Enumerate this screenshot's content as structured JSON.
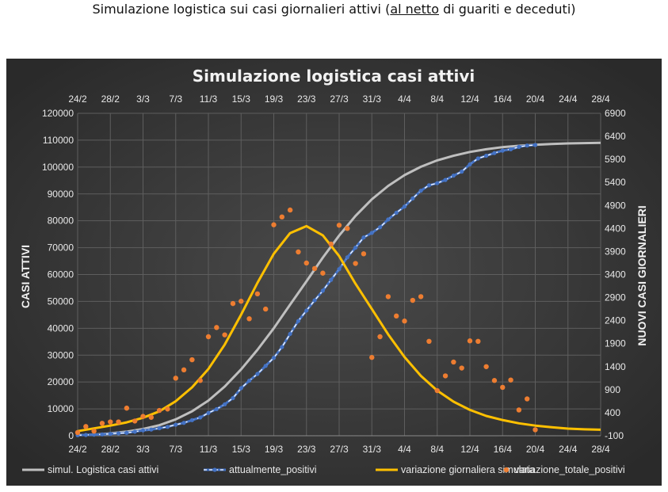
{
  "page": {
    "title_pre": "Simulazione logistica sui casi giornalieri attivi (",
    "title_underlined": "al netto",
    "title_post": " di guariti e deceduti)"
  },
  "chart_data": {
    "type": "line",
    "title": "Simulazione logistica casi attivi",
    "ylabel": "CASI ATTIVI",
    "y2label": "NUOVI CASI GIORNALIERI",
    "x_tick_labels": [
      "24/2",
      "28/2",
      "3/3",
      "7/3",
      "11/3",
      "15/3",
      "19/3",
      "23/3",
      "27/3",
      "31/3",
      "4/4",
      "8/4",
      "12/4",
      "16/4",
      "20/4",
      "24/4",
      "28/4"
    ],
    "x_tick_days": [
      0,
      4,
      8,
      12,
      16,
      20,
      24,
      28,
      32,
      36,
      40,
      44,
      48,
      52,
      56,
      60,
      64
    ],
    "x_unit": "days from 24/2",
    "xlim": [
      0,
      64
    ],
    "ylim": [
      0,
      120000
    ],
    "y_ticks": [
      0,
      10000,
      20000,
      30000,
      40000,
      50000,
      60000,
      70000,
      80000,
      90000,
      100000,
      110000,
      120000
    ],
    "y2lim": [
      -100,
      6900
    ],
    "y2_ticks": [
      -100,
      400,
      900,
      1400,
      1900,
      2400,
      2900,
      3400,
      3900,
      4400,
      4900,
      5400,
      5900,
      6400,
      6900
    ],
    "background": "#404040",
    "grid": true,
    "legend_position": "bottom",
    "series": [
      {
        "name": "simul. Logistica casi attivi",
        "axis": "left",
        "kind": "line",
        "color": "#bfbfbf",
        "x": [
          0,
          2,
          4,
          6,
          8,
          10,
          12,
          14,
          16,
          18,
          20,
          22,
          24,
          26,
          28,
          30,
          32,
          34,
          36,
          38,
          40,
          42,
          44,
          46,
          48,
          50,
          52,
          54,
          56,
          58,
          60,
          62,
          64
        ],
        "y": [
          200,
          420,
          870,
          1530,
          2500,
          3920,
          6100,
          9100,
          13100,
          18300,
          24700,
          32000,
          40000,
          48800,
          57500,
          66300,
          74500,
          81800,
          88000,
          93000,
          97000,
          100100,
          102500,
          104200,
          105600,
          106600,
          107400,
          107900,
          108300,
          108600,
          108800,
          108900,
          109000
        ]
      },
      {
        "name": "attualmente_positivi",
        "axis": "left",
        "kind": "line-markers",
        "color": "#4472c4",
        "dash": "#ffffff",
        "x": [
          0,
          1,
          2,
          3,
          4,
          5,
          6,
          7,
          8,
          9,
          10,
          11,
          12,
          13,
          14,
          15,
          16,
          17,
          18,
          19,
          20,
          21,
          22,
          23,
          24,
          25,
          26,
          27,
          28,
          29,
          30,
          31,
          32,
          33,
          34,
          35,
          36,
          37,
          38,
          39,
          40,
          41,
          42,
          43,
          44,
          45,
          46,
          47,
          48,
          49,
          50,
          51,
          52,
          53,
          54,
          55,
          56
        ],
        "y": [
          200,
          300,
          400,
          500,
          700,
          900,
          1100,
          1500,
          2000,
          2300,
          2800,
          3300,
          4100,
          4800,
          5800,
          6800,
          8500,
          9900,
          11700,
          14000,
          17700,
          20500,
          23000,
          26000,
          29000,
          33000,
          37900,
          42700,
          46600,
          50400,
          54000,
          58000,
          62000,
          66400,
          70000,
          73800,
          75500,
          77600,
          80500,
          83000,
          85300,
          88300,
          91200,
          93200,
          94000,
          95200,
          96800,
          98300,
          101000,
          103200,
          104200,
          105200,
          106100,
          106600,
          107500,
          108000,
          108200
        ]
      },
      {
        "name": "variazione giornaliera simulata",
        "axis": "right",
        "kind": "line",
        "color": "#ffc000",
        "x": [
          0,
          2,
          4,
          6,
          8,
          10,
          12,
          14,
          16,
          18,
          20,
          22,
          24,
          26,
          28,
          30,
          32,
          34,
          36,
          38,
          40,
          42,
          44,
          46,
          48,
          50,
          52,
          54,
          56,
          58,
          60,
          62,
          64
        ],
        "y": [
          0,
          60,
          120,
          190,
          290,
          430,
          650,
          950,
          1350,
          1880,
          2530,
          3220,
          3850,
          4300,
          4450,
          4250,
          3800,
          3200,
          2650,
          2100,
          1610,
          1200,
          880,
          640,
          460,
          330,
          240,
          170,
          120,
          85,
          55,
          40,
          30
        ]
      },
      {
        "name": "variazione_totale_positivi",
        "axis": "right",
        "kind": "markers",
        "color": "#ed7d31",
        "x": [
          0,
          1,
          2,
          3,
          4,
          5,
          6,
          7,
          8,
          9,
          10,
          11,
          12,
          13,
          14,
          15,
          16,
          17,
          18,
          19,
          20,
          21,
          22,
          23,
          24,
          25,
          26,
          27,
          28,
          29,
          30,
          31,
          32,
          33,
          34,
          35,
          36,
          37,
          38,
          39,
          40,
          41,
          42,
          43,
          44,
          45,
          46,
          47,
          48,
          49,
          50,
          51,
          52,
          53,
          54,
          55,
          56
        ],
        "y": [
          -30,
          100,
          0,
          170,
          200,
          200,
          500,
          220,
          320,
          300,
          450,
          480,
          1150,
          1330,
          1550,
          1100,
          2050,
          2250,
          2090,
          2770,
          2820,
          2440,
          2980,
          2650,
          4480,
          4650,
          4800,
          3890,
          3650,
          3530,
          3430,
          4060,
          4470,
          4400,
          3640,
          3850,
          1600,
          2050,
          2920,
          2500,
          2390,
          2840,
          2920,
          1950,
          880,
          1200,
          1500,
          1370,
          1960,
          1950,
          1400,
          1100,
          950,
          1110,
          460,
          700,
          30
        ]
      }
    ]
  }
}
